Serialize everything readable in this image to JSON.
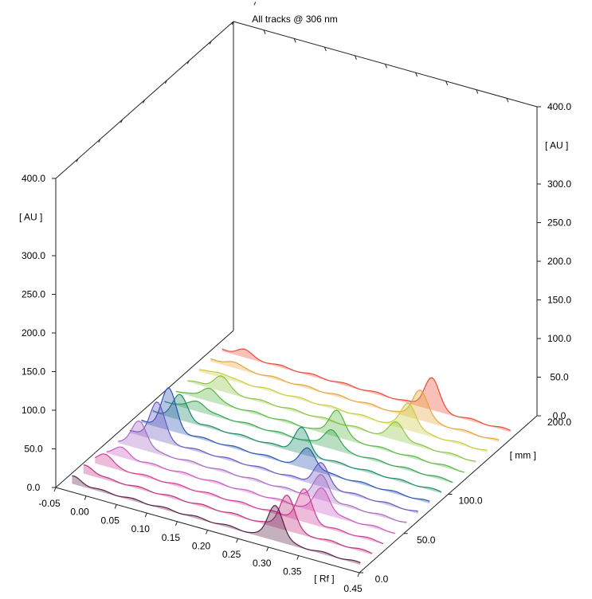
{
  "chart_data": {
    "type": "line",
    "title": "All tracks @ 306 nm",
    "axes": {
      "rf": {
        "label": "[ Rf ]",
        "ticks": [
          "-0.05",
          "0.00",
          "0.05",
          "0.10",
          "0.15",
          "0.20",
          "0.25",
          "0.30",
          "0.35",
          "0.45"
        ],
        "range": [
          -0.05,
          0.45
        ]
      },
      "track": {
        "label": "[ mm ]",
        "ticks": [
          "0.0",
          "50.0",
          "100.0",
          "200.0"
        ],
        "range": [
          0,
          200
        ]
      },
      "au_left": {
        "label": "[ AU ]",
        "ticks": [
          "0.0",
          "50.0",
          "100.0",
          "150.0",
          "200.0",
          "250.0",
          "300.0",
          "400.0"
        ],
        "range": [
          0,
          400
        ]
      },
      "au_right": {
        "label": "[ AU ]",
        "ticks": [
          "0.0",
          "50.0",
          "100.0",
          "150.0",
          "200.0",
          "250.0",
          "300.0",
          "400.0"
        ],
        "range": [
          0,
          400
        ]
      }
    },
    "series": [
      {
        "track": 1,
        "color": "#5a1e46",
        "peaks": [
          {
            "rf": -0.03,
            "au": 8
          },
          {
            "rf": 0.3,
            "au": 45
          }
        ]
      },
      {
        "track": 2,
        "color": "#c0307e",
        "peaks": [
          {
            "rf": -0.03,
            "au": 10
          },
          {
            "rf": 0.3,
            "au": 45
          }
        ]
      },
      {
        "track": 3,
        "color": "#d23c96",
        "peaks": [
          {
            "rf": -0.02,
            "au": 14
          },
          {
            "rf": 0.31,
            "au": 40
          }
        ]
      },
      {
        "track": 4,
        "color": "#cc58c2",
        "peaks": [
          {
            "rf": -0.01,
            "au": 10
          },
          {
            "rf": 0.32,
            "au": 32
          }
        ]
      },
      {
        "track": 5,
        "color": "#a86ac4",
        "peaks": [
          {
            "rf": 0.0,
            "au": 35
          },
          {
            "rf": 0.3,
            "au": 30
          }
        ]
      },
      {
        "track": 6,
        "color": "#6a58c2",
        "peaks": [
          {
            "rf": 0.01,
            "au": 48
          },
          {
            "rf": 0.28,
            "au": 28
          }
        ]
      },
      {
        "track": 7,
        "color": "#2c56b4",
        "peaks": [
          {
            "rf": 0.01,
            "au": 52
          },
          {
            "rf": 0.24,
            "au": 26
          }
        ]
      },
      {
        "track": 8,
        "color": "#1a8a6a",
        "peaks": [
          {
            "rf": 0.01,
            "au": 30
          },
          {
            "rf": 0.21,
            "au": 32
          }
        ]
      },
      {
        "track": 9,
        "color": "#34a44e",
        "peaks": [
          {
            "rf": 0.02,
            "au": 12
          },
          {
            "rf": 0.24,
            "au": 24
          }
        ]
      },
      {
        "track": 10,
        "color": "#58b840",
        "peaks": [
          {
            "rf": 0.02,
            "au": 16
          },
          {
            "rf": 0.23,
            "au": 34
          }
        ]
      },
      {
        "track": 11,
        "color": "#8cc440",
        "peaks": [
          {
            "rf": 0.02,
            "au": 18
          },
          {
            "rf": 0.31,
            "au": 22
          }
        ]
      },
      {
        "track": 12,
        "color": "#c8cc3c",
        "peaks": [
          {
            "rf": 0.0,
            "au": 5
          },
          {
            "rf": 0.31,
            "au": 34
          }
        ]
      },
      {
        "track": 13,
        "color": "#e8a23c",
        "peaks": [
          {
            "rf": 0.0,
            "au": 6
          },
          {
            "rf": 0.31,
            "au": 38
          }
        ]
      },
      {
        "track": 14,
        "color": "#ec4a34",
        "peaks": [
          {
            "rf": 0.0,
            "au": 8
          },
          {
            "rf": 0.31,
            "au": 40
          }
        ]
      }
    ]
  }
}
